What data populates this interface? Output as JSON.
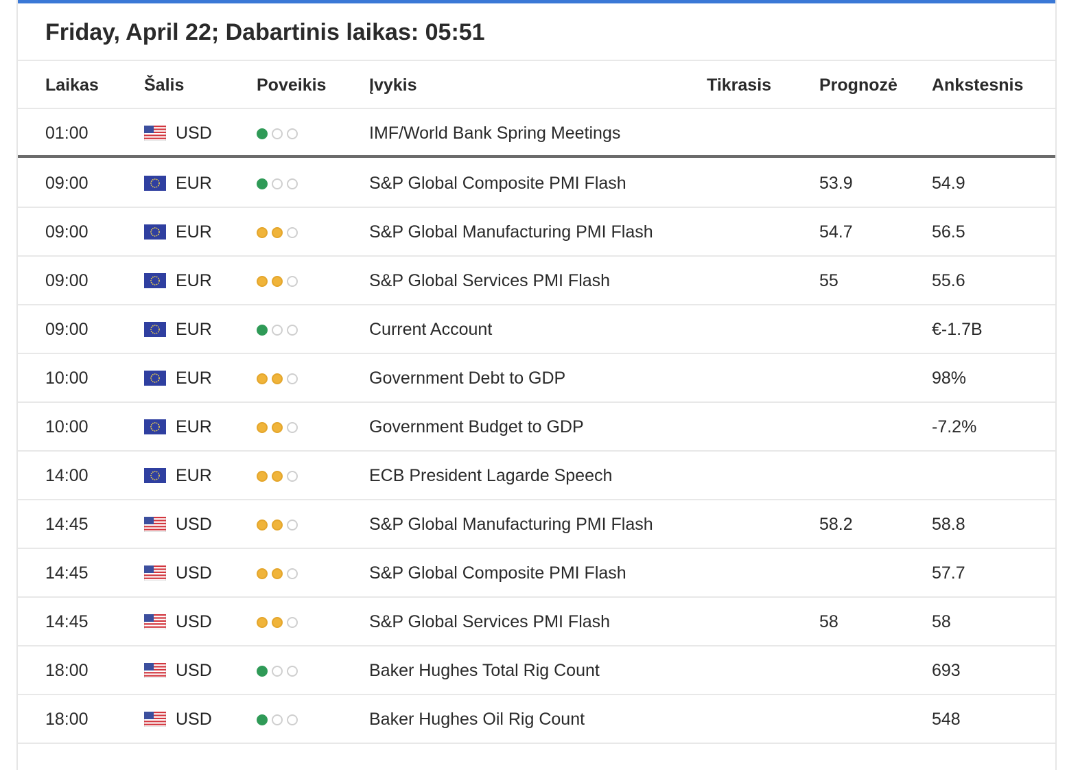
{
  "title": "Friday, April 22; Dabartinis laikas: 05:51",
  "colors": {
    "accent": "#3a78d6",
    "impact_low": "#2f9a57",
    "impact_medium": "#f0b43a",
    "impact_empty": "#cfcfcf"
  },
  "columns": {
    "time": "Laikas",
    "country": "Šalis",
    "impact": "Poveikis",
    "event": "Įvykis",
    "actual": "Tikrasis",
    "forecast": "Prognozė",
    "previous": "Ankstesnis"
  },
  "rows": [
    {
      "time": "01:00",
      "flag": "us-flag-icon",
      "country": "USD",
      "impact": "low",
      "event": "IMF/World Bank Spring Meetings",
      "actual": "",
      "forecast": "",
      "previous": ""
    },
    {
      "time": "09:00",
      "flag": "eu-flag-icon",
      "country": "EUR",
      "impact": "low",
      "event": "S&P Global Composite PMI Flash",
      "actual": "",
      "forecast": "53.9",
      "previous": "54.9"
    },
    {
      "time": "09:00",
      "flag": "eu-flag-icon",
      "country": "EUR",
      "impact": "medium",
      "event": "S&P Global Manufacturing PMI Flash",
      "actual": "",
      "forecast": "54.7",
      "previous": "56.5"
    },
    {
      "time": "09:00",
      "flag": "eu-flag-icon",
      "country": "EUR",
      "impact": "medium",
      "event": "S&P Global Services PMI Flash",
      "actual": "",
      "forecast": "55",
      "previous": "55.6"
    },
    {
      "time": "09:00",
      "flag": "eu-flag-icon",
      "country": "EUR",
      "impact": "low",
      "event": "Current Account",
      "actual": "",
      "forecast": "",
      "previous": "€-1.7B"
    },
    {
      "time": "10:00",
      "flag": "eu-flag-icon",
      "country": "EUR",
      "impact": "medium",
      "event": "Government Debt to GDP",
      "actual": "",
      "forecast": "",
      "previous": "98%"
    },
    {
      "time": "10:00",
      "flag": "eu-flag-icon",
      "country": "EUR",
      "impact": "medium",
      "event": "Government Budget to GDP",
      "actual": "",
      "forecast": "",
      "previous": "-7.2%"
    },
    {
      "time": "14:00",
      "flag": "eu-flag-icon",
      "country": "EUR",
      "impact": "medium",
      "event": "ECB President Lagarde Speech",
      "actual": "",
      "forecast": "",
      "previous": ""
    },
    {
      "time": "14:45",
      "flag": "us-flag-icon",
      "country": "USD",
      "impact": "medium",
      "event": "S&P Global Manufacturing PMI Flash",
      "actual": "",
      "forecast": "58.2",
      "previous": "58.8"
    },
    {
      "time": "14:45",
      "flag": "us-flag-icon",
      "country": "USD",
      "impact": "medium",
      "event": "S&P Global Composite PMI Flash",
      "actual": "",
      "forecast": "",
      "previous": "57.7"
    },
    {
      "time": "14:45",
      "flag": "us-flag-icon",
      "country": "USD",
      "impact": "medium",
      "event": "S&P Global Services PMI Flash",
      "actual": "",
      "forecast": "58",
      "previous": "58"
    },
    {
      "time": "18:00",
      "flag": "us-flag-icon",
      "country": "USD",
      "impact": "low",
      "event": "Baker Hughes Total Rig Count",
      "actual": "",
      "forecast": "",
      "previous": "693"
    },
    {
      "time": "18:00",
      "flag": "us-flag-icon",
      "country": "USD",
      "impact": "low",
      "event": "Baker Hughes Oil Rig Count",
      "actual": "",
      "forecast": "",
      "previous": "548"
    }
  ]
}
